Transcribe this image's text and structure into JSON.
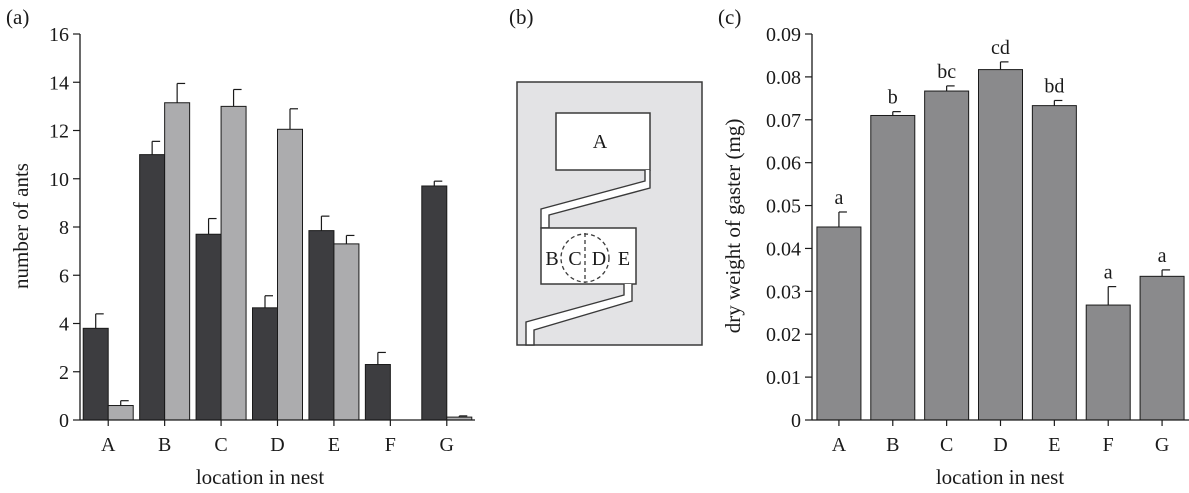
{
  "panels": {
    "a_label": "(a)",
    "b_label": "(b)",
    "c_label": "(c)"
  },
  "diagram": {
    "chamber_top": "A",
    "lower_left": "B",
    "lower_c": "C",
    "lower_d": "D",
    "lower_e": "E"
  },
  "colors": {
    "dark_bar": "#3d3d40",
    "light_bar": "#acacae",
    "mid_bar": "#8a8a8c",
    "nest_fill": "#e3e3e5"
  },
  "chart_data": [
    {
      "type": "bar",
      "panel": "(a)",
      "categories": [
        "A",
        "B",
        "C",
        "D",
        "E",
        "F",
        "G"
      ],
      "series": [
        {
          "color": "#3d3d40",
          "values": [
            3.8,
            11.0,
            7.7,
            4.65,
            7.85,
            2.3,
            9.7
          ],
          "errors": [
            0.6,
            0.55,
            0.65,
            0.5,
            0.6,
            0.5,
            0.2
          ]
        },
        {
          "color": "#acacae",
          "values": [
            0.6,
            13.15,
            13.0,
            12.05,
            7.3,
            null,
            0.12
          ],
          "errors": [
            0.2,
            0.8,
            0.7,
            0.85,
            0.35,
            null,
            0.05
          ]
        }
      ],
      "xlabel": "location in nest",
      "ylabel": "number of ants",
      "ylim": [
        0,
        16
      ],
      "yticks": [
        "0",
        "2",
        "4",
        "6",
        "8",
        "10",
        "12",
        "14",
        "16"
      ],
      "grid": false
    },
    {
      "type": "bar",
      "panel": "(c)",
      "categories": [
        "A",
        "B",
        "C",
        "D",
        "E",
        "F",
        "G"
      ],
      "values": [
        0.045,
        0.071,
        0.0767,
        0.0817,
        0.0733,
        0.0268,
        0.0335
      ],
      "errors": [
        0.0035,
        0.0009,
        0.0012,
        0.0018,
        0.0012,
        0.0043,
        0.0015
      ],
      "significance": [
        "a",
        "b",
        "bc",
        "cd",
        "bd",
        "a",
        "a"
      ],
      "xlabel": "location in nest",
      "ylabel": "dry weight of gaster (mg)",
      "ylim": [
        0,
        0.09
      ],
      "yticks": [
        "0",
        "0.01",
        "0.02",
        "0.03",
        "0.04",
        "0.05",
        "0.06",
        "0.07",
        "0.08",
        "0.09"
      ],
      "grid": false
    }
  ]
}
